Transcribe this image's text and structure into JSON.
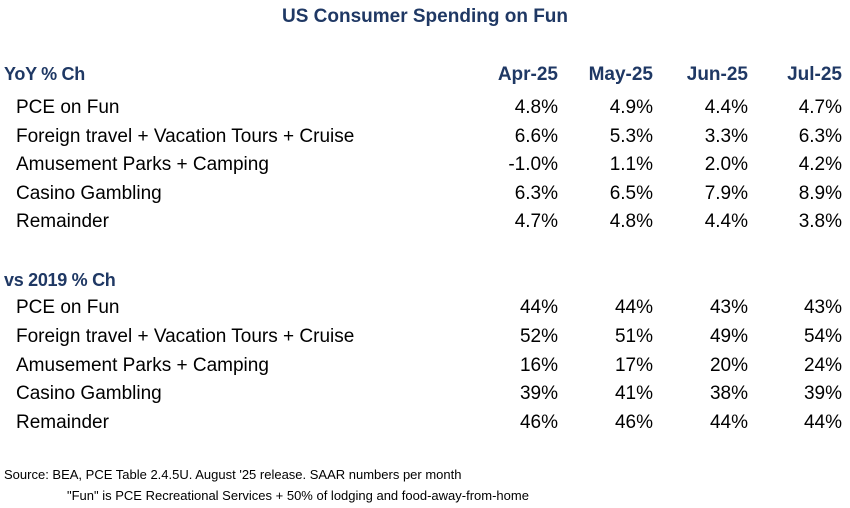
{
  "title": "US Consumer Spending on Fun",
  "columns": [
    "Apr-25",
    "May-25",
    "Jun-25",
    "Jul-25"
  ],
  "sections": [
    {
      "header": "YoY % Ch",
      "rows": [
        {
          "label": "PCE on Fun",
          "values": [
            "4.8%",
            "4.9%",
            "4.4%",
            "4.7%"
          ]
        },
        {
          "label": "Foreign travel + Vacation Tours + Cruise",
          "values": [
            "6.6%",
            "5.3%",
            "3.3%",
            "6.3%"
          ]
        },
        {
          "label": "Amusement Parks + Camping",
          "values": [
            "-1.0%",
            "1.1%",
            "2.0%",
            "4.2%"
          ]
        },
        {
          "label": "Casino Gambling",
          "values": [
            "6.3%",
            "6.5%",
            "7.9%",
            "8.9%"
          ]
        },
        {
          "label": "Remainder",
          "values": [
            "4.7%",
            "4.8%",
            "4.4%",
            "3.8%"
          ]
        }
      ]
    },
    {
      "header": "vs 2019 % Ch",
      "rows": [
        {
          "label": "PCE on Fun",
          "values": [
            "44%",
            "44%",
            "43%",
            "43%"
          ]
        },
        {
          "label": "Foreign travel + Vacation Tours + Cruise",
          "values": [
            "52%",
            "51%",
            "49%",
            "54%"
          ]
        },
        {
          "label": "Amusement Parks + Camping",
          "values": [
            "16%",
            "17%",
            "20%",
            "24%"
          ]
        },
        {
          "label": "Casino Gambling",
          "values": [
            "39%",
            "41%",
            "38%",
            "39%"
          ]
        },
        {
          "label": "Remainder",
          "values": [
            "46%",
            "46%",
            "44%",
            "44%"
          ]
        }
      ]
    }
  ],
  "footnotes": [
    "Source: BEA, PCE Table 2.4.5U. August '25 release. SAAR numbers per month",
    "\"Fun\" is PCE Recreational Services + 50% of lodging and food-away-from-home"
  ],
  "colors": {
    "header": "#1f3864",
    "text": "#000000",
    "background": "#ffffff"
  }
}
